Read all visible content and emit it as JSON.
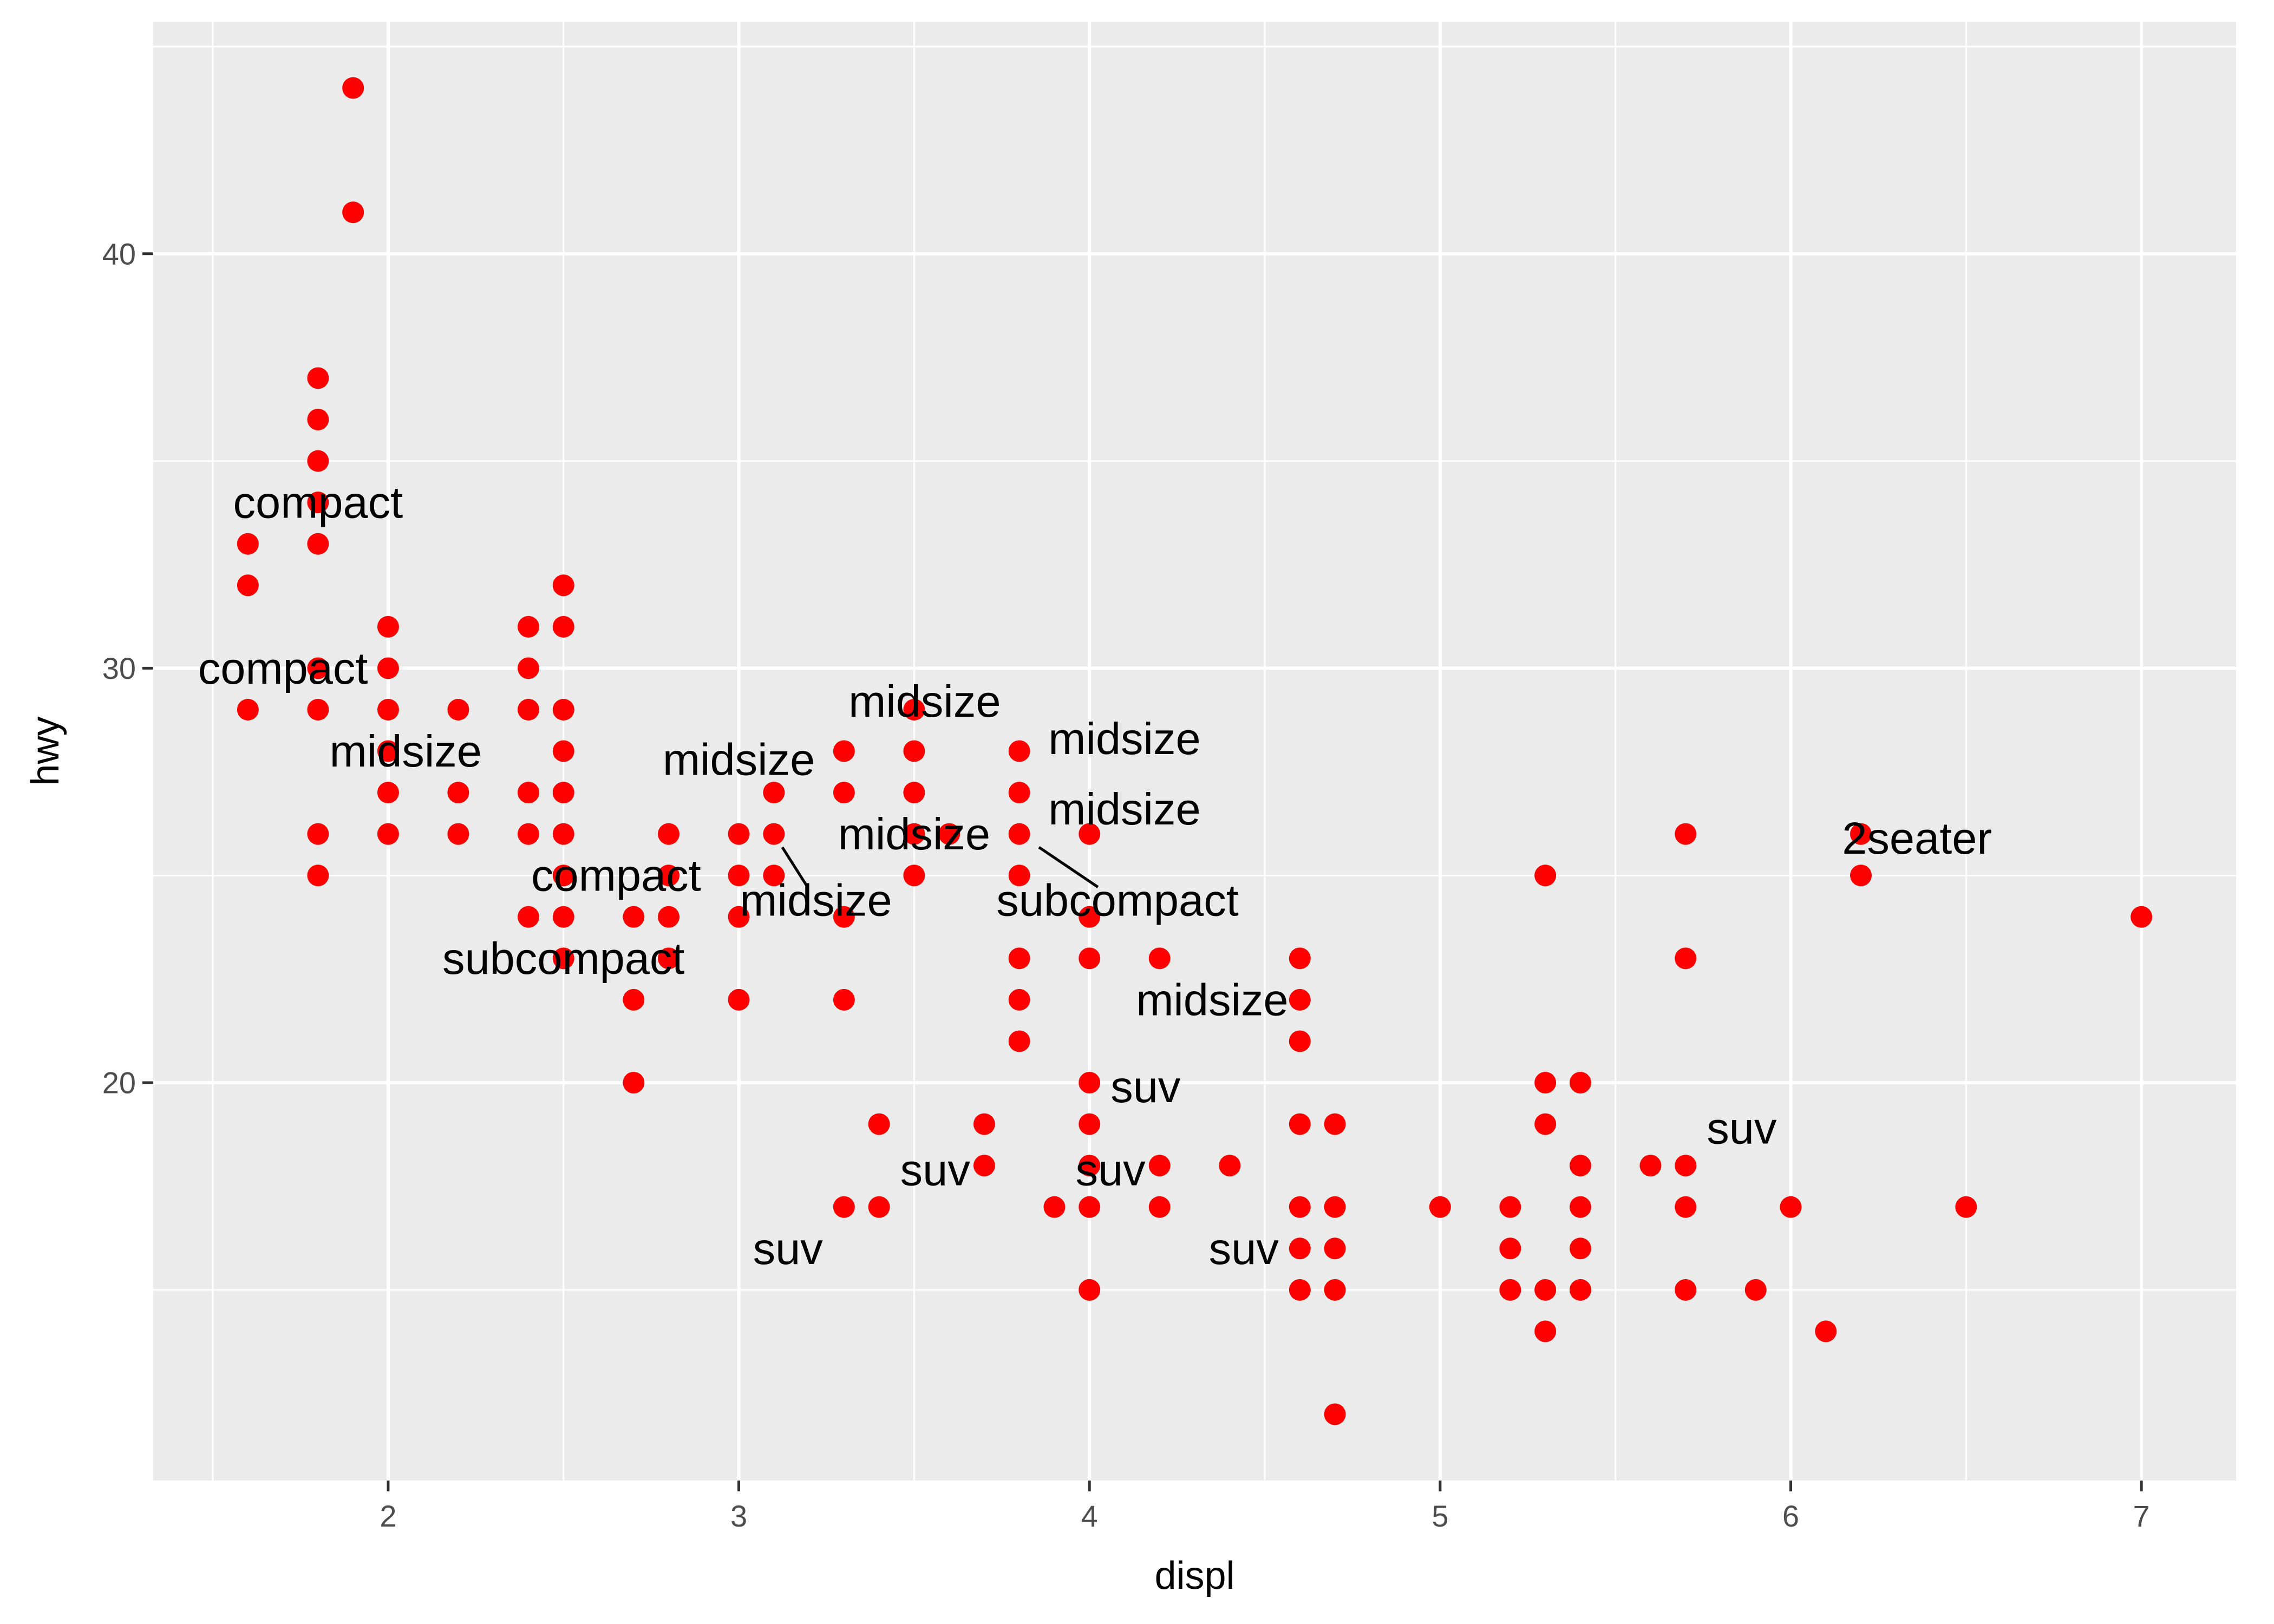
{
  "chart_data": {
    "type": "scatter",
    "title": "",
    "xlabel": "displ",
    "ylabel": "hwy",
    "xlim": [
      1.33,
      7.27
    ],
    "ylim": [
      10.4,
      45.6
    ],
    "x_ticks": [
      2,
      3,
      4,
      5,
      6,
      7
    ],
    "y_ticks": [
      20,
      30,
      40
    ],
    "x_tick_labels": [
      "2",
      "3",
      "4",
      "5",
      "6",
      "7"
    ],
    "y_tick_labels": [
      "20",
      "30",
      "40"
    ],
    "grid": true,
    "legend": "none",
    "point_color": "#FF0000",
    "panel_background": "#EBEBEB",
    "grid_color": "#FFFFFF",
    "series": [
      {
        "points": [
          [
            1.6,
            33
          ],
          [
            1.6,
            32
          ],
          [
            1.6,
            29
          ],
          [
            1.8,
            37
          ],
          [
            1.8,
            36
          ],
          [
            1.8,
            35
          ],
          [
            1.8,
            34
          ],
          [
            1.8,
            33
          ],
          [
            1.8,
            30
          ],
          [
            1.8,
            29
          ],
          [
            1.8,
            26
          ],
          [
            1.8,
            25
          ],
          [
            1.9,
            44
          ],
          [
            1.9,
            41
          ],
          [
            2.0,
            31
          ],
          [
            2.0,
            30
          ],
          [
            2.0,
            29
          ],
          [
            2.0,
            28
          ],
          [
            2.0,
            27
          ],
          [
            2.0,
            26
          ],
          [
            2.2,
            29
          ],
          [
            2.2,
            27
          ],
          [
            2.2,
            26
          ],
          [
            2.4,
            31
          ],
          [
            2.4,
            30
          ],
          [
            2.4,
            29
          ],
          [
            2.4,
            27
          ],
          [
            2.4,
            26
          ],
          [
            2.4,
            24
          ],
          [
            2.5,
            32
          ],
          [
            2.5,
            31
          ],
          [
            2.5,
            29
          ],
          [
            2.5,
            28
          ],
          [
            2.5,
            27
          ],
          [
            2.5,
            26
          ],
          [
            2.5,
            25
          ],
          [
            2.5,
            24
          ],
          [
            2.5,
            23
          ],
          [
            2.7,
            24
          ],
          [
            2.7,
            22
          ],
          [
            2.7,
            20
          ],
          [
            2.8,
            26
          ],
          [
            2.8,
            25
          ],
          [
            2.8,
            24
          ],
          [
            2.8,
            23
          ],
          [
            3.0,
            26
          ],
          [
            3.0,
            25
          ],
          [
            3.0,
            24
          ],
          [
            3.0,
            22
          ],
          [
            3.1,
            27
          ],
          [
            3.1,
            26
          ],
          [
            3.1,
            25
          ],
          [
            3.3,
            28
          ],
          [
            3.3,
            27
          ],
          [
            3.3,
            24
          ],
          [
            3.3,
            22
          ],
          [
            3.3,
            17
          ],
          [
            3.4,
            19
          ],
          [
            3.4,
            17
          ],
          [
            3.5,
            29
          ],
          [
            3.5,
            28
          ],
          [
            3.5,
            27
          ],
          [
            3.5,
            26
          ],
          [
            3.5,
            25
          ],
          [
            3.6,
            26
          ],
          [
            3.7,
            19
          ],
          [
            3.7,
            18
          ],
          [
            3.8,
            28
          ],
          [
            3.8,
            27
          ],
          [
            3.8,
            26
          ],
          [
            3.8,
            25
          ],
          [
            3.8,
            23
          ],
          [
            3.8,
            22
          ],
          [
            3.8,
            21
          ],
          [
            3.9,
            17
          ],
          [
            4.0,
            26
          ],
          [
            4.0,
            24
          ],
          [
            4.0,
            23
          ],
          [
            4.0,
            20
          ],
          [
            4.0,
            19
          ],
          [
            4.0,
            18
          ],
          [
            4.0,
            17
          ],
          [
            4.0,
            15
          ],
          [
            4.2,
            23
          ],
          [
            4.2,
            18
          ],
          [
            4.2,
            17
          ],
          [
            4.4,
            18
          ],
          [
            4.6,
            23
          ],
          [
            4.6,
            22
          ],
          [
            4.6,
            21
          ],
          [
            4.6,
            19
          ],
          [
            4.6,
            17
          ],
          [
            4.6,
            16
          ],
          [
            4.6,
            15
          ],
          [
            4.7,
            19
          ],
          [
            4.7,
            17
          ],
          [
            4.7,
            16
          ],
          [
            4.7,
            15
          ],
          [
            4.7,
            12
          ],
          [
            5.0,
            17
          ],
          [
            5.2,
            17
          ],
          [
            5.2,
            16
          ],
          [
            5.2,
            15
          ],
          [
            5.3,
            25
          ],
          [
            5.3,
            20
          ],
          [
            5.3,
            19
          ],
          [
            5.3,
            15
          ],
          [
            5.3,
            14
          ],
          [
            5.4,
            20
          ],
          [
            5.4,
            18
          ],
          [
            5.4,
            17
          ],
          [
            5.4,
            16
          ],
          [
            5.4,
            15
          ],
          [
            5.6,
            18
          ],
          [
            5.7,
            26
          ],
          [
            5.7,
            23
          ],
          [
            5.7,
            18
          ],
          [
            5.7,
            17
          ],
          [
            5.7,
            15
          ],
          [
            5.9,
            15
          ],
          [
            6.0,
            17
          ],
          [
            6.1,
            14
          ],
          [
            6.2,
            26
          ],
          [
            6.2,
            25
          ],
          [
            6.5,
            17
          ],
          [
            7.0,
            24
          ]
        ]
      }
    ],
    "annotations": [
      {
        "text": "compact",
        "x": 1.8,
        "y": 34,
        "tx": 1.8,
        "ty": 34
      },
      {
        "text": "compact",
        "x": 1.7,
        "y": 30,
        "tx": 1.7,
        "ty": 30
      },
      {
        "text": "midsize",
        "x": 2.05,
        "y": 28,
        "tx": 2.05,
        "ty": 28
      },
      {
        "text": "midsize",
        "x": 3.0,
        "y": 27.8,
        "tx": 3.0,
        "ty": 27.8
      },
      {
        "text": "midsize",
        "x": 3.53,
        "y": 29.2,
        "tx": 3.53,
        "ty": 29.2
      },
      {
        "text": "midsize",
        "x": 4.1,
        "y": 28.3,
        "tx": 4.1,
        "ty": 28.3
      },
      {
        "text": "midsize",
        "x": 4.1,
        "y": 26.6,
        "tx": 4.1,
        "ty": 26.6
      },
      {
        "text": "midsize",
        "x": 3.5,
        "y": 26.0,
        "tx": 3.5,
        "ty": 26.0
      },
      {
        "text": "midsize",
        "x": 3.1,
        "y": 26.0,
        "tx": 3.22,
        "ty": 24.4
      },
      {
        "text": "compact",
        "x": 2.65,
        "y": 25.0,
        "tx": 2.65,
        "ty": 25.0
      },
      {
        "text": "subcompact",
        "x": 2.5,
        "y": 23.0,
        "tx": 2.5,
        "ty": 23.0
      },
      {
        "text": "subcompact",
        "x": 3.8,
        "y": 26.0,
        "tx": 4.08,
        "ty": 24.4
      },
      {
        "text": "midsize",
        "x": 4.35,
        "y": 22.0,
        "tx": 4.35,
        "ty": 22.0
      },
      {
        "text": "suv",
        "x": 4.16,
        "y": 19.9,
        "tx": 4.16,
        "ty": 19.9
      },
      {
        "text": "suv",
        "x": 5.86,
        "y": 18.9,
        "tx": 5.86,
        "ty": 18.9
      },
      {
        "text": "suv",
        "x": 3.56,
        "y": 17.9,
        "tx": 3.56,
        "ty": 17.9
      },
      {
        "text": "suv",
        "x": 4.06,
        "y": 17.9,
        "tx": 4.06,
        "ty": 17.9
      },
      {
        "text": "suv",
        "x": 3.14,
        "y": 16.0,
        "tx": 3.14,
        "ty": 16.0
      },
      {
        "text": "suv",
        "x": 4.44,
        "y": 16.0,
        "tx": 4.44,
        "ty": 16.0
      },
      {
        "text": "2seater",
        "x": 6.36,
        "y": 25.9,
        "tx": 6.36,
        "ty": 25.9
      }
    ]
  }
}
